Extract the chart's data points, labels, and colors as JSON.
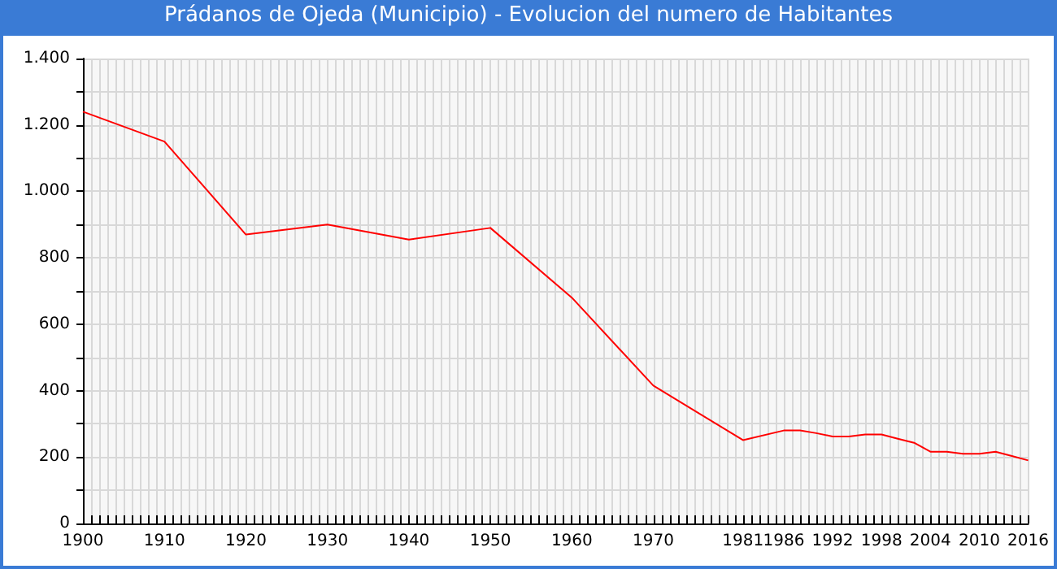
{
  "chart_data": {
    "type": "line",
    "title": "Prádanos de Ojeda (Municipio) - Evolucion del numero de Habitantes",
    "x": [
      1900,
      1910,
      1920,
      1930,
      1940,
      1950,
      1960,
      1970,
      1981,
      1986,
      1988,
      1990,
      1992,
      1994,
      1996,
      1998,
      2000,
      2002,
      2004,
      2006,
      2008,
      2010,
      2012,
      2014,
      2016
    ],
    "series": [
      {
        "color": "#ff0000",
        "values": [
          1240,
          1150,
          870,
          900,
          855,
          890,
          680,
          415,
          251,
          280,
          280,
          272,
          262,
          262,
          268,
          268,
          255,
          243,
          216,
          216,
          210,
          210,
          216,
          203,
          190
        ]
      }
    ],
    "xlim": [
      1900,
      2016
    ],
    "xticks": [
      1900,
      1910,
      1920,
      1930,
      1940,
      1950,
      1960,
      1970,
      1981,
      1986,
      1992,
      1998,
      2004,
      2010,
      2016
    ],
    "ylim": [
      0,
      1400
    ],
    "yticks": [
      0,
      200,
      400,
      600,
      800,
      {
        "value": 1000,
        "label": "1.000"
      },
      {
        "value": 1200,
        "label": "1.200"
      },
      {
        "value": 1400,
        "label": "1.400"
      }
    ],
    "grid": true,
    "marker": "none",
    "line_style": "solid"
  }
}
